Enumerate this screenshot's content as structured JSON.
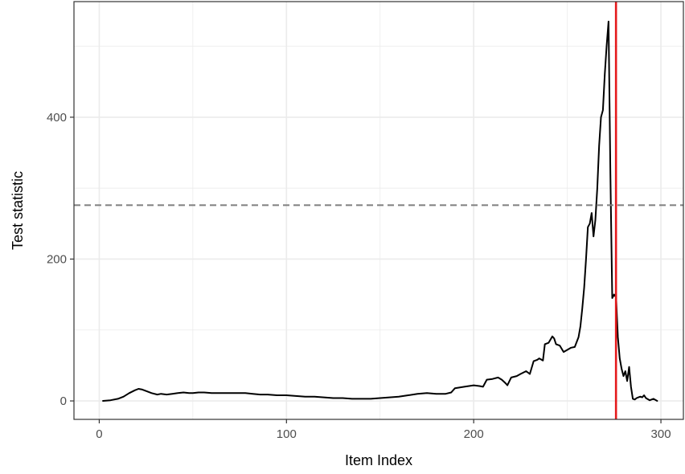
{
  "chart_data": {
    "type": "line",
    "title": "",
    "xlabel": "Item Index",
    "ylabel": "Test statistic",
    "xlim": [
      -13.5,
      312
    ],
    "ylim": [
      -26,
      563
    ],
    "x_ticks": [
      0,
      100,
      200,
      300
    ],
    "x_tick_labels": [
      "0",
      "100",
      "200",
      "300"
    ],
    "y_ticks": [
      0,
      200,
      400
    ],
    "y_tick_labels": [
      "0",
      "200",
      "400"
    ],
    "x_minor_ticks": [
      50,
      150,
      250
    ],
    "y_minor_ticks": [
      100,
      300,
      500
    ],
    "grid": true,
    "legend": "none",
    "threshold": {
      "value": 276,
      "style": "dashed",
      "color": "#7f7f7f"
    },
    "changepoint": {
      "x": 276,
      "color": "#e41a1c"
    },
    "colors": {
      "line": "#000000",
      "grid": "#ebebeb",
      "panel_border": "#333333"
    },
    "series": [
      {
        "x": [
          2,
          6,
          10,
          13,
          16,
          19,
          21,
          23,
          25,
          28,
          31,
          33,
          36,
          39,
          42,
          45,
          48,
          50,
          53,
          56,
          60,
          63,
          66,
          70,
          74,
          78,
          82,
          86,
          90,
          95,
          100,
          105,
          110,
          115,
          120,
          125,
          130,
          135,
          140,
          145,
          150,
          155,
          160,
          165,
          170,
          175,
          180,
          185,
          188,
          190,
          195,
          200,
          203,
          205,
          207,
          210,
          213,
          215,
          217,
          218,
          220,
          223,
          225,
          228,
          230,
          232,
          234,
          235,
          237,
          238,
          240,
          242,
          243,
          244,
          246,
          248,
          250,
          252,
          254,
          256,
          257,
          258,
          259,
          260,
          261,
          262,
          263,
          264,
          265,
          266,
          267,
          268,
          269,
          270,
          271,
          272,
          273,
          274,
          275,
          275.5,
          276,
          276.5,
          277,
          278,
          279,
          280,
          281,
          282,
          283,
          284,
          285,
          286,
          287,
          288,
          289,
          290,
          291,
          292,
          294,
          296,
          298
        ],
        "y": [
          0,
          1,
          3,
          6,
          11,
          15,
          17,
          16,
          14,
          11,
          9,
          10,
          9,
          10,
          11,
          12,
          11,
          11,
          12,
          12,
          11,
          11,
          11,
          11,
          11,
          11,
          10,
          9,
          9,
          8,
          8,
          7,
          6,
          6,
          5,
          4,
          4,
          3,
          3,
          3,
          4,
          5,
          6,
          8,
          10,
          11,
          10,
          10,
          12,
          18,
          20,
          22,
          21,
          20,
          30,
          31,
          33,
          30,
          25,
          22,
          33,
          35,
          38,
          42,
          38,
          56,
          58,
          60,
          57,
          80,
          82,
          91,
          88,
          80,
          78,
          69,
          72,
          75,
          76,
          90,
          105,
          130,
          160,
          200,
          245,
          250,
          265,
          232,
          255,
          300,
          360,
          400,
          410,
          460,
          500,
          535,
          320,
          145,
          150,
          148,
          150,
          120,
          90,
          60,
          45,
          35,
          42,
          28,
          48,
          20,
          3,
          2,
          4,
          5,
          6,
          5,
          8,
          4,
          1,
          3,
          0
        ]
      }
    ]
  }
}
